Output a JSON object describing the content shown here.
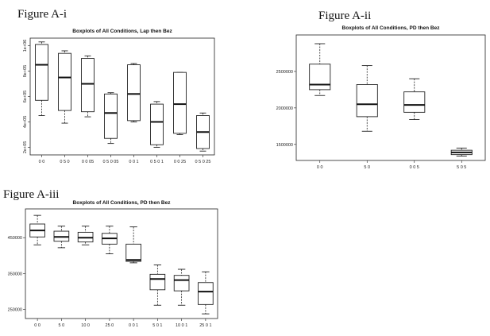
{
  "chart_data": [
    {
      "type": "boxplot",
      "figure_label": "Figure A-i",
      "title": "Boxplots of All Conditions, Lap then Bez",
      "xlabel": "",
      "ylabel": "",
      "categories": [
        "0 0",
        "0 5 0",
        "0 0 05",
        "0 5 0 05",
        "0 0 1",
        "0 5 0 1",
        "0 0 25",
        "0 5 0 25"
      ],
      "ytick_values": [
        200000,
        400000,
        600000,
        800000,
        1000000
      ],
      "ytick_labels": [
        "2e+05",
        "4e+05",
        "6e+05",
        "8e+05",
        "1e+06"
      ],
      "ylim": [
        140000,
        1060000
      ],
      "boxes": [
        {
          "min": 450000,
          "q1": 570000,
          "median": 850000,
          "q3": 1010000,
          "max": 1030000
        },
        {
          "min": 390000,
          "q1": 490000,
          "median": 750000,
          "q3": 940000,
          "max": 960000
        },
        {
          "min": 440000,
          "q1": 480000,
          "median": 700000,
          "q3": 900000,
          "max": 920000
        },
        {
          "min": 230000,
          "q1": 270000,
          "median": 470000,
          "q3": 620000,
          "max": 630000
        },
        {
          "min": 400000,
          "q1": 410000,
          "median": 620000,
          "q3": 850000,
          "max": 860000
        },
        {
          "min": 200000,
          "q1": 220000,
          "median": 400000,
          "q3": 540000,
          "max": 560000
        },
        {
          "min": 300000,
          "q1": 310000,
          "median": 540000,
          "q3": 790000,
          "max": 790000
        },
        {
          "min": 170000,
          "q1": 190000,
          "median": 320000,
          "q3": 450000,
          "max": 470000
        }
      ]
    },
    {
      "type": "boxplot",
      "figure_label": "Figure A-ii",
      "title": "Boxplots of All Conditions, PD then Bez",
      "xlabel": "",
      "ylabel": "",
      "categories": [
        "0 0",
        "5 0",
        "0 0 5",
        "5 0 5"
      ],
      "ytick_values": [
        1500000,
        2000000,
        2500000
      ],
      "ytick_labels": [
        "1500000",
        "2000000",
        "2500000"
      ],
      "ylim": [
        1280000,
        3000000
      ],
      "boxes": [
        {
          "min": 2170000,
          "q1": 2250000,
          "median": 2320000,
          "q3": 2600000,
          "max": 2880000
        },
        {
          "min": 1680000,
          "q1": 1880000,
          "median": 2050000,
          "q3": 2320000,
          "max": 2580000
        },
        {
          "min": 1840000,
          "q1": 1940000,
          "median": 2040000,
          "q3": 2220000,
          "max": 2400000
        },
        {
          "min": 1340000,
          "q1": 1360000,
          "median": 1390000,
          "q3": 1420000,
          "max": 1450000
        }
      ]
    },
    {
      "type": "boxplot",
      "figure_label": "Figure A-iii",
      "title": "Boxplots of All Conditions, PD then Bez",
      "xlabel": "",
      "ylabel": "",
      "categories": [
        "0 0",
        "5 0",
        "10 0",
        "25 0",
        "0 0 1",
        "5 0 1",
        "10 0 1",
        "25 0 1"
      ],
      "ytick_values": [
        250000,
        350000,
        450000
      ],
      "ytick_labels": [
        "250000",
        "350000",
        "450000"
      ],
      "ylim": [
        225000,
        530000
      ],
      "boxes": [
        {
          "min": 430000,
          "q1": 452000,
          "median": 470000,
          "q3": 488000,
          "max": 512000
        },
        {
          "min": 422000,
          "q1": 440000,
          "median": 452000,
          "q3": 468000,
          "max": 482000
        },
        {
          "min": 430000,
          "q1": 438000,
          "median": 450000,
          "q3": 465000,
          "max": 482000
        },
        {
          "min": 405000,
          "q1": 432000,
          "median": 448000,
          "q3": 462000,
          "max": 482000
        },
        {
          "min": 380000,
          "q1": 384000,
          "median": 388000,
          "q3": 432000,
          "max": 480000
        },
        {
          "min": 262000,
          "q1": 305000,
          "median": 335000,
          "q3": 348000,
          "max": 374000
        },
        {
          "min": 262000,
          "q1": 302000,
          "median": 332000,
          "q3": 345000,
          "max": 362000
        },
        {
          "min": 238000,
          "q1": 264000,
          "median": 300000,
          "q3": 325000,
          "max": 355000
        }
      ]
    }
  ]
}
